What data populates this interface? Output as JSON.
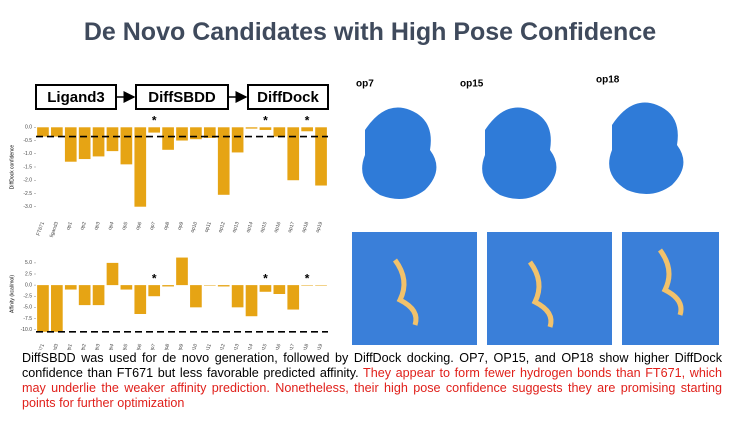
{
  "title": "De Novo Candidates with High Pose Confidence",
  "flow": [
    "Ligand3",
    "DiffSBDD",
    "DiffDock"
  ],
  "image_labels": [
    "op7",
    "op15",
    "op18"
  ],
  "caption": {
    "text": "DiffSBDD was used for de novo generation, followed by DiffDock docking. OP7, OP15, and OP18 show higher DiffDock confidence than FT671 but less favorable predicted affinity.",
    "highlight": "They appear to form fewer hydrogen bonds than FT671, which may underlie the weaker affinity prediction. Nonetheless, their high pose confidence suggests they are promising starting points for further optimization"
  },
  "chart_data": [
    {
      "type": "bar",
      "ylabel": "DiffDock confidence",
      "color": "#e6a414",
      "categories": [
        "FT671",
        "ligand3",
        "op1",
        "op2",
        "op3",
        "op4",
        "op5",
        "op6",
        "op7",
        "op8",
        "op9",
        "op10",
        "op11",
        "op12",
        "op13",
        "op14",
        "op15",
        "op16",
        "op17",
        "op18",
        "op19"
      ],
      "values": [
        -0.35,
        -0.35,
        -1.3,
        -1.2,
        -1.1,
        -0.9,
        -1.4,
        -3.0,
        -0.2,
        -0.85,
        -0.5,
        -0.45,
        -0.4,
        -2.55,
        -0.95,
        -0.05,
        -0.1,
        -0.35,
        -2.0,
        -0.15,
        -2.2
      ],
      "ylim": [
        -3.2,
        0.2
      ],
      "yticks": [
        {
          "value": 0,
          "label": "0.0"
        },
        -0.5,
        {
          "value": -1,
          "label": "-1.0"
        },
        -1.5,
        {
          "value": -2,
          "label": "-2.0"
        },
        -2.5,
        {
          "value": -3,
          "label": "-3.0"
        }
      ],
      "annotations": [
        {
          "category": "op7",
          "text": "*"
        },
        {
          "category": "op15",
          "text": "*"
        },
        {
          "category": "op18",
          "text": "*"
        }
      ]
    },
    {
      "type": "bar",
      "ylabel": "Affinity (kcal/mol)",
      "color": "#e6a414",
      "categories": [
        "FT671",
        "ligand3",
        "op1",
        "op2",
        "op3",
        "op4",
        "op5",
        "op6",
        "op7",
        "op8",
        "op9",
        "op10",
        "op11",
        "op12",
        "op13",
        "op14",
        "op15",
        "op16",
        "op17",
        "op18",
        "op19"
      ],
      "values": [
        -10.5,
        -10.5,
        -1.0,
        -4.5,
        -4.5,
        5.0,
        -1.0,
        -6.5,
        -2.5,
        -0.3,
        6.2,
        -5.0,
        0.0,
        -0.3,
        -5.0,
        -7.0,
        -1.5,
        -2.0,
        -5.5,
        0.0,
        0.0
      ],
      "ylim": [
        -11,
        7
      ],
      "yticks": [
        {
          "value": 5,
          "label": "5.0"
        },
        2.5,
        {
          "value": 0,
          "label": "0.0"
        },
        -2.5,
        {
          "value": -5,
          "label": "-5.0"
        },
        -7.5,
        {
          "value": -10,
          "label": "-10.0"
        }
      ],
      "annotations": [
        {
          "category": "op7",
          "text": "*"
        },
        {
          "category": "op15",
          "text": "*"
        },
        {
          "category": "op18",
          "text": "*"
        }
      ]
    }
  ]
}
